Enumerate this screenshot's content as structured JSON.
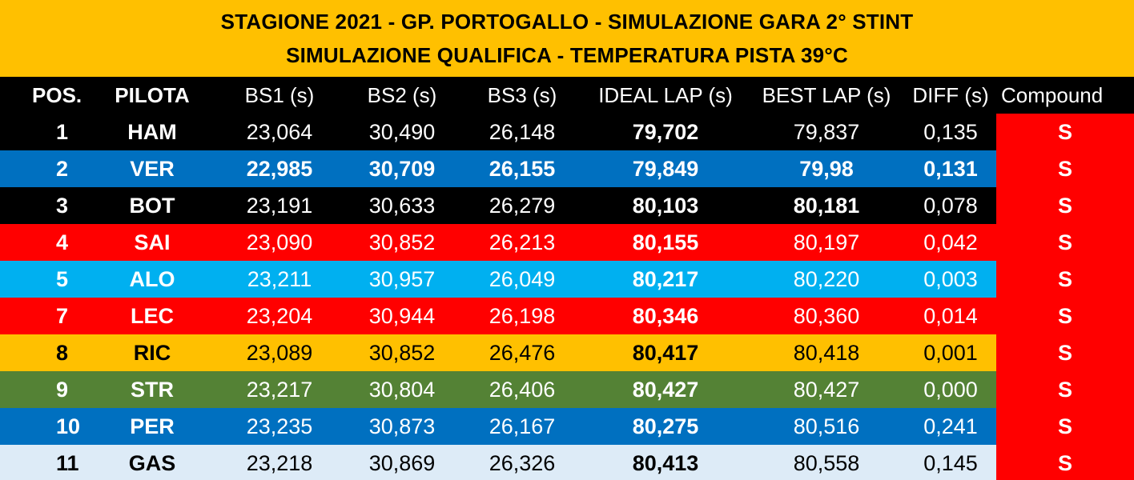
{
  "title": {
    "line1": "STAGIONE 2021 - GP. PORTOGALLO - SIMULAZIONE GARA 2° STINT",
    "line2": "SIMULAZIONE QUALIFICA - TEMPERATURA PISTA 39°C"
  },
  "headers": {
    "pos": "POS.",
    "pilota": "PILOTA",
    "bs1": "BS1 (s)",
    "bs2": "BS2 (s)",
    "bs3": "BS3 (s)",
    "ideal": "IDEAL LAP (s)",
    "best": "BEST LAP (s)",
    "diff": "DIFF (s)",
    "compound": "Compound"
  },
  "colors": {
    "title_band": "#ffc000",
    "header_bg": "#000000",
    "compound_soft": "#ff0000"
  },
  "rows": [
    {
      "pos": "1",
      "pilota": "HAM",
      "bs1": "23,064",
      "bs2": "30,490",
      "bs3": "26,148",
      "ideal": "79,702",
      "best": "79,837",
      "diff": "0,135",
      "compound": "S",
      "bg": "#000000",
      "fg": "#ffffff",
      "bold": [
        "ideal"
      ]
    },
    {
      "pos": "2",
      "pilota": "VER",
      "bs1": "22,985",
      "bs2": "30,709",
      "bs3": "26,155",
      "ideal": "79,849",
      "best": "79,98",
      "diff": "0,131",
      "compound": "S",
      "bg": "#0070c0",
      "fg": "#ffffff",
      "bold": [
        "bs1",
        "bs2",
        "bs3",
        "ideal",
        "best",
        "diff"
      ]
    },
    {
      "pos": "3",
      "pilota": "BOT",
      "bs1": "23,191",
      "bs2": "30,633",
      "bs3": "26,279",
      "ideal": "80,103",
      "best": "80,181",
      "diff": "0,078",
      "compound": "S",
      "bg": "#000000",
      "fg": "#ffffff",
      "bold": [
        "ideal",
        "best"
      ]
    },
    {
      "pos": "4",
      "pilota": "SAI",
      "bs1": "23,090",
      "bs2": "30,852",
      "bs3": "26,213",
      "ideal": "80,155",
      "best": "80,197",
      "diff": "0,042",
      "compound": "S",
      "bg": "#ff0000",
      "fg": "#ffffff",
      "bold": [
        "ideal"
      ]
    },
    {
      "pos": "5",
      "pilota": "ALO",
      "bs1": "23,211",
      "bs2": "30,957",
      "bs3": "26,049",
      "ideal": "80,217",
      "best": "80,220",
      "diff": "0,003",
      "compound": "S",
      "bg": "#00b0f0",
      "fg": "#ffffff",
      "bold": [
        "ideal"
      ]
    },
    {
      "pos": "7",
      "pilota": "LEC",
      "bs1": "23,204",
      "bs2": "30,944",
      "bs3": "26,198",
      "ideal": "80,346",
      "best": "80,360",
      "diff": "0,014",
      "compound": "S",
      "bg": "#ff0000",
      "fg": "#ffffff",
      "bold": [
        "ideal"
      ]
    },
    {
      "pos": "8",
      "pilota": "RIC",
      "bs1": "23,089",
      "bs2": "30,852",
      "bs3": "26,476",
      "ideal": "80,417",
      "best": "80,418",
      "diff": "0,001",
      "compound": "S",
      "bg": "#ffc000",
      "fg": "#000000",
      "bold": [
        "ideal"
      ]
    },
    {
      "pos": "9",
      "pilota": "STR",
      "bs1": "23,217",
      "bs2": "30,804",
      "bs3": "26,406",
      "ideal": "80,427",
      "best": "80,427",
      "diff": "0,000",
      "compound": "S",
      "bg": "#548235",
      "fg": "#ffffff",
      "bold": [
        "ideal"
      ]
    },
    {
      "pos": "10",
      "pilota": "PER",
      "bs1": "23,235",
      "bs2": "30,873",
      "bs3": "26,167",
      "ideal": "80,275",
      "best": "80,516",
      "diff": "0,241",
      "compound": "S",
      "bg": "#0070c0",
      "fg": "#ffffff",
      "bold": [
        "ideal"
      ]
    },
    {
      "pos": "11",
      "pilota": "GAS",
      "bs1": "23,218",
      "bs2": "30,869",
      "bs3": "26,326",
      "ideal": "80,413",
      "best": "80,558",
      "diff": "0,145",
      "compound": "S",
      "bg": "#ddebf7",
      "fg": "#000000",
      "bold": [
        "ideal"
      ]
    }
  ]
}
